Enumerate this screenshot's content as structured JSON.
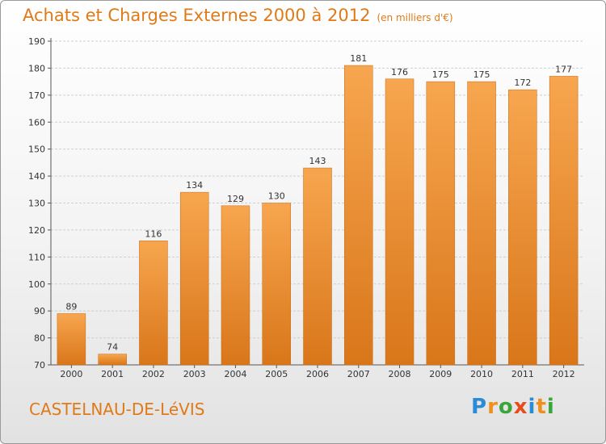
{
  "header": {
    "title": "Achats et Charges Externes 2000 à 2012",
    "subtitle": "(en milliers d'€)"
  },
  "footer": {
    "commune": "CASTELNAU-DE-LéVIS",
    "logo": [
      "P",
      "r",
      "o",
      "x",
      "i",
      "t",
      "i"
    ]
  },
  "colors": {
    "bar_top": "#f7a64f",
    "bar_bottom": "#d9761a",
    "accent": "#e07a18"
  },
  "chart_data": {
    "type": "bar",
    "categories": [
      "2000",
      "2001",
      "2002",
      "2003",
      "2004",
      "2005",
      "2006",
      "2007",
      "2008",
      "2009",
      "2010",
      "2011",
      "2012"
    ],
    "values": [
      89,
      74,
      116,
      134,
      129,
      130,
      143,
      181,
      176,
      175,
      175,
      172,
      177
    ],
    "ylim": [
      70,
      190
    ],
    "yticks": [
      70,
      80,
      90,
      100,
      110,
      120,
      130,
      140,
      150,
      160,
      170,
      180,
      190
    ],
    "grid": true,
    "xlabel": "",
    "ylabel": ""
  }
}
